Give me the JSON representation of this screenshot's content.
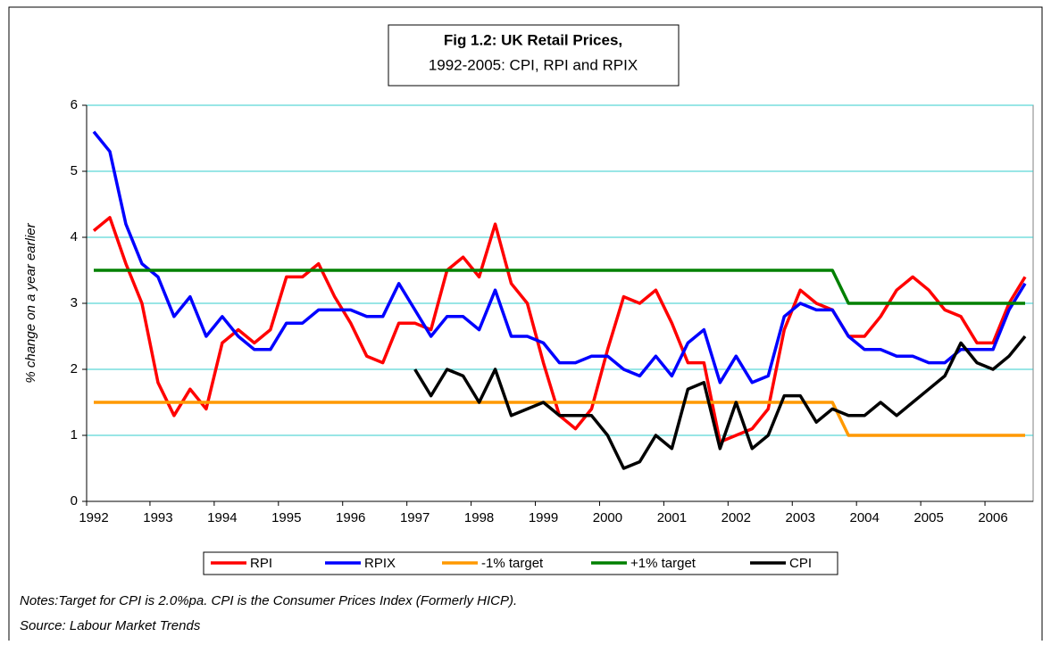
{
  "chart_data": {
    "type": "line",
    "title": "Fig 1.2: UK Retail Prices,",
    "subtitle": "1992-2005: CPI, RPI and RPIX",
    "y_label": "% change on a year earlier",
    "notes": "Notes:Target for CPI is 2.0%pa.   CPI is the Consumer Prices Index (Formerly HICP).",
    "source": "Source: Labour Market Trends",
    "categories": [
      "1992",
      null,
      null,
      null,
      "1993",
      null,
      null,
      null,
      "1994",
      null,
      null,
      null,
      "1995",
      null,
      null,
      null,
      "1996",
      null,
      null,
      null,
      "1997",
      null,
      null,
      null,
      "1998",
      null,
      null,
      null,
      "1999",
      null,
      null,
      null,
      "2000",
      null,
      null,
      null,
      "2001",
      null,
      null,
      null,
      "2002",
      null,
      null,
      null,
      "2003",
      null,
      null,
      null,
      "2004",
      null,
      null,
      null,
      "2005",
      null,
      null,
      null,
      "2006",
      null,
      null
    ],
    "ylim": [
      0,
      6
    ],
    "yticks": [
      0,
      1,
      2,
      3,
      4,
      5,
      6
    ],
    "grid": true,
    "series": [
      {
        "name": "RPI",
        "color": "#ff0000",
        "values": [
          4.1,
          4.3,
          3.6,
          3.0,
          1.8,
          1.3,
          1.7,
          1.4,
          2.4,
          2.6,
          2.4,
          2.6,
          3.4,
          3.4,
          3.6,
          3.1,
          2.7,
          2.2,
          2.1,
          2.7,
          2.7,
          2.6,
          3.5,
          3.7,
          3.4,
          4.2,
          3.3,
          3.0,
          2.1,
          1.3,
          1.1,
          1.4,
          2.3,
          3.1,
          3.0,
          3.2,
          2.7,
          2.1,
          2.1,
          0.9,
          1.0,
          1.1,
          1.4,
          2.6,
          3.2,
          3.0,
          2.9,
          2.5,
          2.5,
          2.8,
          3.2,
          3.4,
          3.2,
          2.9,
          2.8,
          2.4,
          2.4,
          3.0,
          3.4
        ]
      },
      {
        "name": "RPIX",
        "color": "#0000ff",
        "values": [
          5.6,
          5.3,
          4.2,
          3.6,
          3.4,
          2.8,
          3.1,
          2.5,
          2.8,
          2.5,
          2.3,
          2.3,
          2.7,
          2.7,
          2.9,
          2.9,
          2.9,
          2.8,
          2.8,
          3.3,
          2.9,
          2.5,
          2.8,
          2.8,
          2.6,
          3.2,
          2.5,
          2.5,
          2.4,
          2.1,
          2.1,
          2.2,
          2.2,
          2.0,
          1.9,
          2.2,
          1.9,
          2.4,
          2.6,
          1.8,
          2.2,
          1.8,
          1.9,
          2.8,
          3.0,
          2.9,
          2.9,
          2.5,
          2.3,
          2.3,
          2.2,
          2.2,
          2.1,
          2.1,
          2.3,
          2.3,
          2.3,
          2.9,
          3.3
        ]
      },
      {
        "name": "-1% target",
        "color": "#ff9900",
        "values": [
          1.5,
          1.5,
          1.5,
          1.5,
          1.5,
          1.5,
          1.5,
          1.5,
          1.5,
          1.5,
          1.5,
          1.5,
          1.5,
          1.5,
          1.5,
          1.5,
          1.5,
          1.5,
          1.5,
          1.5,
          1.5,
          1.5,
          1.5,
          1.5,
          1.5,
          1.5,
          1.5,
          1.5,
          1.5,
          1.5,
          1.5,
          1.5,
          1.5,
          1.5,
          1.5,
          1.5,
          1.5,
          1.5,
          1.5,
          1.5,
          1.5,
          1.5,
          1.5,
          1.5,
          1.5,
          1.5,
          1.5,
          1.0,
          1.0,
          1.0,
          1.0,
          1.0,
          1.0,
          1.0,
          1.0,
          1.0,
          1.0,
          1.0,
          1.0
        ]
      },
      {
        "name": "+1% target",
        "color": "#008000",
        "values": [
          3.5,
          3.5,
          3.5,
          3.5,
          3.5,
          3.5,
          3.5,
          3.5,
          3.5,
          3.5,
          3.5,
          3.5,
          3.5,
          3.5,
          3.5,
          3.5,
          3.5,
          3.5,
          3.5,
          3.5,
          3.5,
          3.5,
          3.5,
          3.5,
          3.5,
          3.5,
          3.5,
          3.5,
          3.5,
          3.5,
          3.5,
          3.5,
          3.5,
          3.5,
          3.5,
          3.5,
          3.5,
          3.5,
          3.5,
          3.5,
          3.5,
          3.5,
          3.5,
          3.5,
          3.5,
          3.5,
          3.5,
          3.0,
          3.0,
          3.0,
          3.0,
          3.0,
          3.0,
          3.0,
          3.0,
          3.0,
          3.0,
          3.0,
          3.0
        ]
      },
      {
        "name": "CPI",
        "color": "#000000",
        "values": [
          null,
          null,
          null,
          null,
          null,
          null,
          null,
          null,
          null,
          null,
          null,
          null,
          null,
          null,
          null,
          null,
          null,
          null,
          null,
          null,
          2.0,
          1.6,
          2.0,
          1.9,
          1.5,
          2.0,
          1.3,
          1.4,
          1.5,
          1.3,
          1.3,
          1.3,
          1.0,
          0.5,
          0.6,
          1.0,
          0.8,
          1.7,
          1.8,
          0.8,
          1.5,
          0.8,
          1.0,
          1.6,
          1.6,
          1.2,
          1.4,
          1.3,
          1.3,
          1.5,
          1.3,
          1.5,
          1.7,
          1.9,
          2.4,
          2.1,
          2.0,
          2.2,
          2.5
        ]
      }
    ]
  }
}
